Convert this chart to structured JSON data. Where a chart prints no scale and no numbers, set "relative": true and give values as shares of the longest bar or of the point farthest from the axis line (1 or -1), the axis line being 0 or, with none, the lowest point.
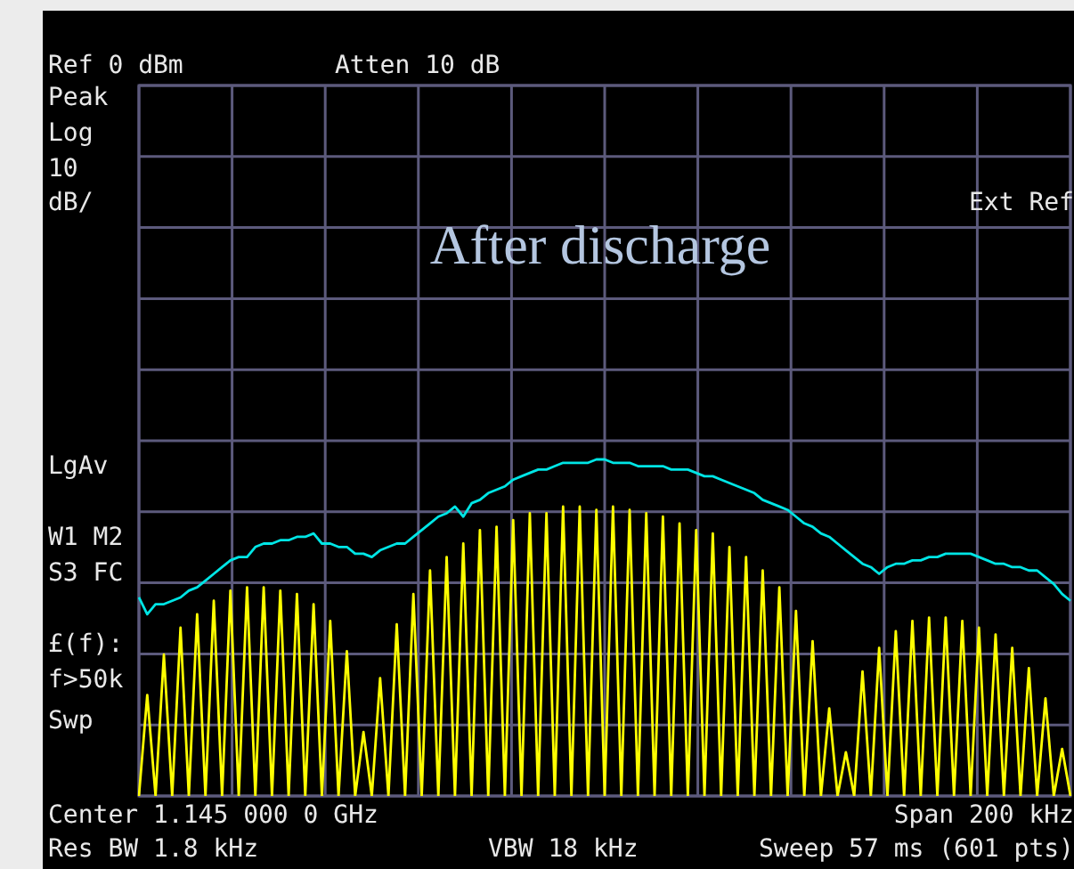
{
  "chart_data": {
    "type": "line",
    "title": "After discharge",
    "relative": true,
    "grid": true,
    "marker": "none",
    "categories": [
      null,
      null,
      null,
      null,
      null,
      null,
      null,
      null,
      null,
      null,
      null,
      null,
      null,
      null,
      null,
      null,
      null,
      null,
      null,
      null,
      null,
      null,
      null,
      null,
      null,
      null,
      null,
      null,
      null,
      null,
      null,
      null,
      null,
      null,
      null,
      null,
      null,
      null,
      null,
      null,
      null,
      null,
      null,
      null,
      null,
      null,
      null,
      null,
      null,
      null,
      null,
      null,
      null,
      null,
      null,
      null,
      null,
      null,
      null,
      null,
      null,
      null,
      null,
      null,
      null,
      null,
      null,
      null,
      null,
      null,
      null,
      null,
      null,
      null,
      null,
      null,
      null,
      null,
      null,
      null,
      null,
      null,
      null,
      null,
      null,
      null,
      null,
      null,
      null,
      null,
      null,
      null,
      null,
      null,
      null,
      null,
      null,
      null,
      null,
      null,
      null,
      null,
      null,
      null,
      null,
      null,
      null,
      null,
      null,
      null,
      null,
      null,
      null
    ],
    "series": [
      {
        "color": "#ffff00",
        "values": [
          0,
          0.3,
          0,
          0.42,
          0,
          0.5,
          0,
          0.54,
          0,
          0.58,
          0,
          0.61,
          0,
          0.62,
          0,
          0.62,
          0,
          0.61,
          0,
          0.6,
          0,
          0.57,
          0,
          0.52,
          0,
          0.43,
          0,
          0.19,
          0,
          0.35,
          0,
          0.51,
          0,
          0.6,
          0,
          0.67,
          0,
          0.71,
          0,
          0.75,
          0,
          0.79,
          0,
          0.8,
          0,
          0.82,
          0,
          0.84,
          0,
          0.84,
          0,
          0.86,
          0,
          0.86,
          0,
          0.85,
          0,
          0.86,
          0,
          0.85,
          0,
          0.84,
          0,
          0.83,
          0,
          0.81,
          0,
          0.79,
          0,
          0.78,
          0,
          0.74,
          0,
          0.71,
          0,
          0.67,
          0,
          0.62,
          0,
          0.55,
          0,
          0.46,
          0,
          0.26,
          0,
          0.13,
          0,
          0.37,
          0,
          0.44,
          0,
          0.49,
          0,
          0.52,
          0,
          0.53,
          0,
          0.53,
          0,
          0.52,
          0,
          0.5,
          0,
          0.48,
          0,
          0.44,
          0,
          0.38,
          0,
          0.29,
          0,
          0.14,
          0
        ]
      },
      {
        "color": "#00e5e5",
        "values": [
          0.59,
          0.54,
          0.57,
          0.57,
          0.58,
          0.59,
          0.61,
          0.62,
          0.64,
          0.66,
          0.68,
          0.7,
          0.71,
          0.71,
          0.74,
          0.75,
          0.75,
          0.76,
          0.76,
          0.77,
          0.77,
          0.78,
          0.75,
          0.75,
          0.74,
          0.74,
          0.72,
          0.72,
          0.71,
          0.73,
          0.74,
          0.75,
          0.75,
          0.77,
          0.79,
          0.81,
          0.83,
          0.84,
          0.86,
          0.83,
          0.87,
          0.88,
          0.9,
          0.91,
          0.92,
          0.94,
          0.95,
          0.96,
          0.97,
          0.97,
          0.98,
          0.99,
          0.99,
          0.99,
          0.99,
          1,
          1,
          0.99,
          0.99,
          0.99,
          0.98,
          0.98,
          0.98,
          0.98,
          0.97,
          0.97,
          0.97,
          0.96,
          0.95,
          0.95,
          0.94,
          0.93,
          0.92,
          0.91,
          0.9,
          0.88,
          0.87,
          0.86,
          0.85,
          0.83,
          0.81,
          0.8,
          0.78,
          0.77,
          0.75,
          0.73,
          0.71,
          0.69,
          0.68,
          0.66,
          0.68,
          0.69,
          0.69,
          0.7,
          0.7,
          0.71,
          0.71,
          0.72,
          0.72,
          0.72,
          0.72,
          0.71,
          0.7,
          0.69,
          0.69,
          0.68,
          0.68,
          0.67,
          0.67,
          0.65,
          0.63,
          0.6,
          0.58
        ]
      }
    ],
    "annotations": [
      "Ref 0 dBm",
      "Atten 10 dB",
      "Peak",
      "Log",
      "10",
      "dB/",
      "Ext Ref",
      "LgAv",
      "W1 M2",
      "S3 FC",
      "£(f):",
      "f>50k",
      "Swp",
      "Center 1.145 000 0 GHz",
      "Span 200 kHz",
      "Res BW 1.8 kHz",
      "VBW 18 kHz",
      "Sweep 57 ms (601 pts)"
    ]
  }
}
